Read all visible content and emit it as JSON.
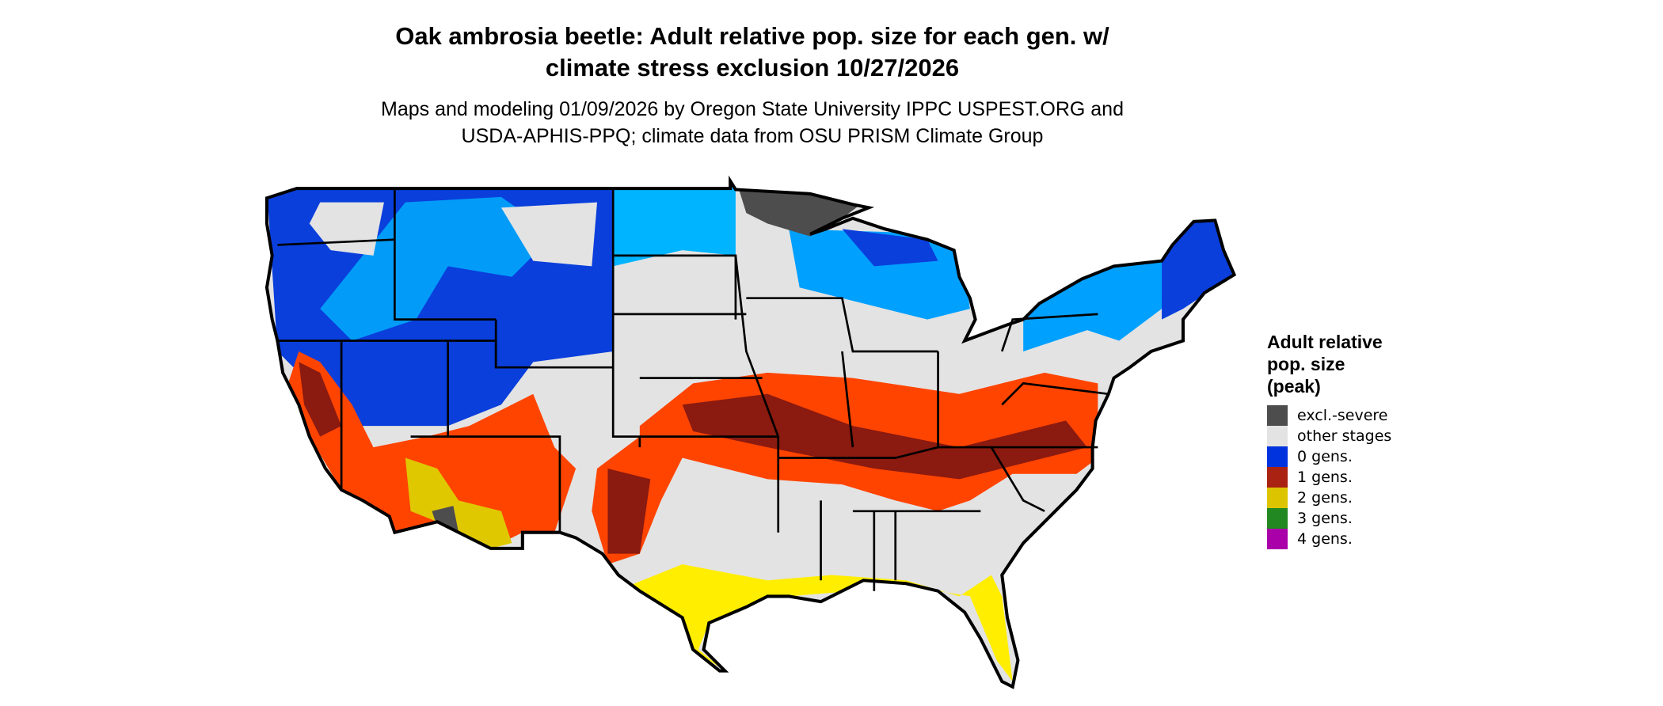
{
  "title": {
    "line1": "Oak ambrosia beetle: Adult relative pop. size for each gen. w/",
    "line2": "climate stress exclusion 10/27/2026"
  },
  "subtitle": {
    "line1": "Maps and modeling 01/09/2026 by Oregon State University IPPC USPEST.ORG and",
    "line2": "USDA-APHIS-PPQ; climate data from OSU PRISM Climate Group"
  },
  "legend": {
    "title": [
      "Adult relative",
      "pop. size",
      "(peak)"
    ],
    "items": [
      {
        "label": "excl.-severe",
        "color": "#4d4d4d"
      },
      {
        "label": "other stages",
        "color": "#e3e3e3"
      },
      {
        "label": "0 gens.",
        "color": "#0033dd"
      },
      {
        "label": "1 gens.",
        "color": "#aa2211"
      },
      {
        "label": "2 gens.",
        "color": "#ddc400"
      },
      {
        "label": "3 gens.",
        "color": "#228822"
      },
      {
        "label": "4 gens.",
        "color": "#aa00aa"
      }
    ]
  },
  "map": {
    "region": "Contiguous United States",
    "colors": {
      "light_blue": "#00b4ff",
      "orange_red": "#ff4400",
      "bright_yellow": "#ffee00",
      "dark_red": "#8b1a10"
    }
  }
}
